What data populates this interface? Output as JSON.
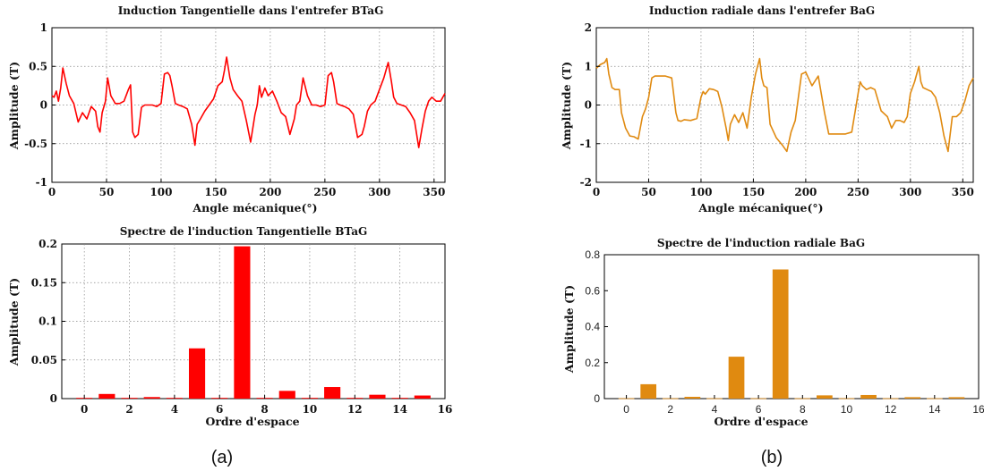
{
  "colors": {
    "panel_a": "#ff0000",
    "panel_b": "#e08a10"
  },
  "captions": {
    "a": "(a)",
    "b": "(b)"
  },
  "chart_data": [
    {
      "id": "ta",
      "type": "line",
      "title": "Induction Tangentielle dans l'entrefer BTaG",
      "xlabel": "Angle mécanique(°)",
      "ylabel": "Amplitude (T)",
      "xlim": [
        0,
        360
      ],
      "ylim": [
        -1,
        1
      ],
      "xticks": [
        0,
        50,
        100,
        150,
        200,
        250,
        300,
        350
      ],
      "yticks": [
        -1,
        -0.5,
        0,
        0.5,
        1
      ],
      "ytick_labels": [
        "-1",
        "-0.5",
        "0",
        "0.5",
        "1"
      ],
      "grid": true,
      "color": "#ff0000",
      "x": [
        0,
        2,
        4,
        6,
        8,
        10,
        13,
        16,
        20,
        24,
        28,
        32,
        36,
        40,
        42,
        44,
        46,
        49,
        51,
        54,
        58,
        62,
        66,
        70,
        72,
        74,
        76,
        79,
        82,
        85,
        88,
        92,
        96,
        100,
        103,
        106,
        108,
        110,
        113,
        116,
        120,
        124,
        128,
        131,
        133,
        136,
        140,
        144,
        148,
        152,
        156,
        158,
        160,
        163,
        166,
        170,
        174,
        178,
        182,
        186,
        188,
        190,
        192,
        195,
        198,
        202,
        206,
        210,
        214,
        218,
        222,
        224,
        227,
        230,
        234,
        238,
        242,
        246,
        250,
        253,
        256,
        258,
        261,
        264,
        268,
        272,
        276,
        280,
        284,
        286,
        289,
        292,
        296,
        300,
        304,
        308,
        311,
        313,
        316,
        320,
        324,
        328,
        332,
        336,
        339,
        342,
        345,
        348,
        352,
        356,
        360
      ],
      "y": [
        0.12,
        0.1,
        0.18,
        0.05,
        0.22,
        0.48,
        0.28,
        0.12,
        0.02,
        -0.22,
        -0.1,
        -0.18,
        -0.02,
        -0.08,
        -0.28,
        -0.35,
        -0.1,
        0.05,
        0.35,
        0.12,
        0.02,
        0.02,
        0.05,
        0.2,
        0.26,
        -0.35,
        -0.42,
        -0.38,
        -0.03,
        0.0,
        0.0,
        0.0,
        -0.02,
        0.02,
        0.4,
        0.42,
        0.38,
        0.25,
        0.02,
        0.0,
        -0.02,
        -0.05,
        -0.25,
        -0.52,
        -0.25,
        -0.18,
        -0.08,
        0.0,
        0.08,
        0.25,
        0.3,
        0.45,
        0.62,
        0.35,
        0.2,
        0.12,
        0.05,
        -0.2,
        -0.48,
        -0.12,
        0.0,
        0.25,
        0.1,
        0.22,
        0.12,
        0.18,
        0.05,
        -0.1,
        -0.15,
        -0.38,
        -0.18,
        0.0,
        0.05,
        0.35,
        0.12,
        0.0,
        0.0,
        -0.02,
        0.0,
        0.38,
        0.42,
        0.3,
        0.02,
        0.0,
        -0.02,
        -0.05,
        -0.12,
        -0.42,
        -0.38,
        -0.28,
        -0.08,
        0.0,
        0.05,
        0.2,
        0.35,
        0.55,
        0.3,
        0.1,
        0.02,
        0.0,
        -0.02,
        -0.1,
        -0.2,
        -0.55,
        -0.3,
        -0.08,
        0.05,
        0.1,
        0.05,
        0.05,
        0.15
      ]
    },
    {
      "id": "ra",
      "type": "line",
      "title": "Induction radiale dans l'entrefer BaG",
      "xlabel": "Angle mécanique(°)",
      "ylabel": "Amplitude (T)",
      "xlim": [
        0,
        360
      ],
      "ylim": [
        -2,
        2
      ],
      "xticks": [
        0,
        50,
        100,
        150,
        200,
        250,
        300,
        350
      ],
      "yticks": [
        -2,
        -1,
        0,
        1,
        2
      ],
      "ytick_labels": [
        "-2",
        "-1",
        "0",
        "1",
        "2"
      ],
      "grid": true,
      "color": "#e08a10",
      "x": [
        0,
        4,
        8,
        10,
        12,
        15,
        18,
        22,
        24,
        28,
        32,
        36,
        40,
        44,
        47,
        50,
        53,
        56,
        60,
        66,
        72,
        76,
        78,
        81,
        84,
        90,
        96,
        100,
        102,
        104,
        108,
        112,
        116,
        120,
        124,
        126,
        128,
        132,
        136,
        140,
        144,
        148,
        152,
        156,
        158,
        160,
        163,
        166,
        172,
        178,
        182,
        186,
        190,
        193,
        196,
        200,
        206,
        212,
        218,
        222,
        225,
        228,
        232,
        238,
        244,
        250,
        252,
        254,
        258,
        262,
        266,
        272,
        278,
        282,
        286,
        290,
        294,
        297,
        300,
        304,
        308,
        310,
        312,
        316,
        320,
        324,
        328,
        332,
        336,
        340,
        344,
        348,
        352,
        356,
        360
      ],
      "y": [
        0.95,
        1.05,
        1.1,
        1.2,
        0.8,
        0.45,
        0.4,
        0.4,
        -0.2,
        -0.6,
        -0.8,
        -0.82,
        -0.88,
        -0.3,
        -0.1,
        0.2,
        0.7,
        0.75,
        0.75,
        0.75,
        0.7,
        -0.2,
        -0.4,
        -0.42,
        -0.38,
        -0.4,
        -0.35,
        0.2,
        0.35,
        0.28,
        0.42,
        0.4,
        0.35,
        -0.05,
        -0.6,
        -0.92,
        -0.5,
        -0.25,
        -0.45,
        -0.2,
        -0.6,
        0.2,
        0.8,
        1.2,
        0.7,
        0.5,
        0.45,
        -0.5,
        -0.85,
        -1.05,
        -1.2,
        -0.7,
        -0.4,
        0.2,
        0.8,
        0.85,
        0.5,
        0.75,
        -0.2,
        -0.75,
        -0.75,
        -0.75,
        -0.75,
        -0.75,
        -0.7,
        0.3,
        0.6,
        0.5,
        0.4,
        0.45,
        0.4,
        -0.15,
        -0.3,
        -0.6,
        -0.4,
        -0.4,
        -0.45,
        -0.3,
        0.3,
        0.6,
        1.0,
        0.6,
        0.45,
        0.4,
        0.35,
        0.2,
        -0.2,
        -0.8,
        -1.2,
        -0.3,
        -0.3,
        -0.2,
        0.1,
        0.5,
        0.7
      ]
    },
    {
      "id": "ts",
      "type": "bar",
      "title": "Spectre de l'induction Tangentielle BTaG",
      "xlabel": "Ordre d'espace",
      "ylabel": "Amplitude (T)",
      "xlim": [
        -1,
        16
      ],
      "ylim": [
        0,
        0.2
      ],
      "xticks": [
        0,
        2,
        4,
        6,
        8,
        10,
        12,
        14,
        16
      ],
      "yticks": [
        0,
        0.05,
        0.1,
        0.15,
        0.2
      ],
      "ytick_labels": [
        "0",
        "0.05",
        "0.1",
        "0.15",
        "0.2"
      ],
      "grid": true,
      "color": "#ff0000",
      "categories": [
        0,
        1,
        2,
        3,
        4,
        5,
        6,
        7,
        8,
        9,
        10,
        11,
        12,
        13,
        14,
        15
      ],
      "values": [
        0.001,
        0.006,
        0.001,
        0.002,
        0.001,
        0.065,
        0.001,
        0.197,
        0.001,
        0.01,
        0.001,
        0.015,
        0.001,
        0.005,
        0.001,
        0.004
      ]
    },
    {
      "id": "rs",
      "type": "bar",
      "title": "Spectre de l'induction radiale BaG",
      "xlabel": "Ordre d'espace",
      "ylabel": "Amplitude (T)",
      "xlim": [
        -1,
        16
      ],
      "ylim": [
        0,
        0.8
      ],
      "xticks": [
        0,
        2,
        4,
        6,
        8,
        10,
        12,
        14,
        16
      ],
      "yticks": [
        0,
        0.2,
        0.4,
        0.6,
        0.8
      ],
      "ytick_labels": [
        "0",
        "0.2",
        "0.4",
        "0.6",
        "0.8"
      ],
      "grid": false,
      "color": "#e08a10",
      "categories": [
        0,
        1,
        2,
        3,
        4,
        5,
        6,
        7,
        8,
        9,
        10,
        11,
        12,
        13,
        14,
        15
      ],
      "values": [
        0.002,
        0.08,
        0.002,
        0.01,
        0.002,
        0.233,
        0.002,
        0.718,
        0.002,
        0.018,
        0.002,
        0.02,
        0.002,
        0.008,
        0.002,
        0.008
      ]
    }
  ]
}
